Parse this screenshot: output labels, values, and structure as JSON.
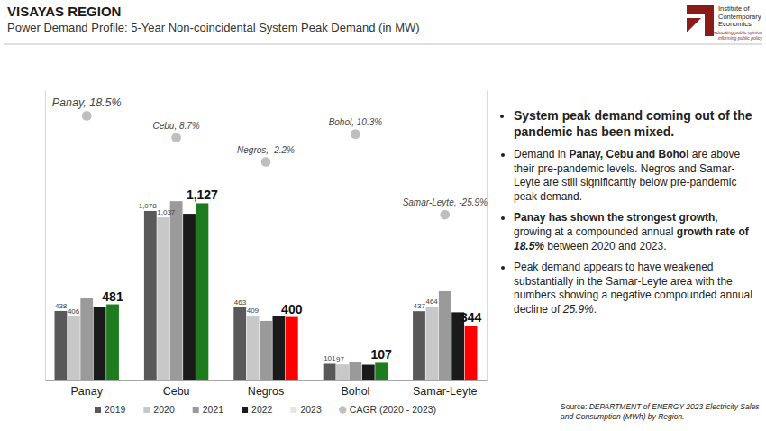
{
  "chart_data": {
    "type": "bar",
    "title": "VISAYAS REGION",
    "subtitle": "Power Demand Profile: 5-Year Non-coincidental System Peak Demand (in MW)",
    "categories": [
      "Panay",
      "Cebu",
      "Negros",
      "Bohol",
      "Samar-Leyte"
    ],
    "ylim": [
      0,
      1850
    ],
    "y2lim": [
      -100,
      30
    ],
    "tick_labels": "x",
    "data_labels": true,
    "legend": "bottom",
    "series": [
      {
        "name": "2019",
        "color": "#595959",
        "values": [
          438,
          1078,
          463,
          101,
          437
        ],
        "value_labels": [
          "438",
          "1,078",
          "463",
          "101",
          "437"
        ]
      },
      {
        "name": "2020",
        "color": "#c8c8c8",
        "values": [
          406,
          1037,
          409,
          97,
          464
        ],
        "value_labels": [
          "406",
          "1,037",
          "409",
          "97",
          "464"
        ]
      },
      {
        "name": "2021",
        "color": "#9a9a9a",
        "values": [
          520,
          1140,
          375,
          112,
          565
        ],
        "value_labels": [
          null,
          null,
          null,
          null,
          null
        ]
      },
      {
        "name": "2022",
        "color": "#1a1a1a",
        "values": [
          465,
          1060,
          405,
          95,
          430
        ],
        "value_labels": [
          null,
          null,
          null,
          null,
          null
        ]
      },
      {
        "name": "2023",
        "color": "#e6e6e6",
        "colors": [
          "#1e7b1e",
          "#1e7b1e",
          "#ff0000",
          "#1e7b1e",
          "#ff0000"
        ],
        "values": [
          481,
          1127,
          400,
          107,
          344
        ],
        "value_labels": [
          "481",
          "1,127",
          "400",
          "107",
          "344"
        ]
      },
      {
        "name": "CAGR (2020 - 2023)",
        "type": "scatter",
        "axis": "y2",
        "marker": "circle",
        "color": "#bfbfbf",
        "values": [
          18.5,
          8.7,
          -2.2,
          10.3,
          -25.9
        ],
        "value_labels": [
          "Panay, 18.5%",
          "Cebu, 8.7%",
          "Negros, -2.2%",
          "Bohol, 10.3%",
          "Samar-Leyte, -25.9%"
        ]
      }
    ]
  },
  "logo": {
    "name_lines": [
      "Institute of",
      "Contemporary",
      "Economics"
    ],
    "tagline_lines": [
      "educating public opinion",
      "informing public policy"
    ]
  },
  "notes": {
    "bullets": [
      {
        "runs": [
          {
            "text": "System peak demand coming out of the pandemic has been mixed.",
            "style": "bold"
          }
        ]
      },
      {
        "runs": [
          {
            "text": "Demand in ",
            "style": "regular"
          },
          {
            "text": "Panay, Cebu and Bohol",
            "style": "bold"
          },
          {
            "text": " are above their pre-pandemic levels. Negros and Samar-Leyte are still significantly below pre-pandemic peak demand.",
            "style": "regular"
          }
        ]
      },
      {
        "runs": [
          {
            "text": "Panay has shown the strongest growth",
            "style": "bold"
          },
          {
            "text": ", growing at a compounded annual ",
            "style": "regular"
          },
          {
            "text": "growth rate of ",
            "style": "bold"
          },
          {
            "text": "18.5%",
            "style": "bold-italic"
          },
          {
            "text": " between 2020 and 2023.",
            "style": "regular"
          }
        ]
      },
      {
        "runs": [
          {
            "text": "Peak demand appears to have weakened substantially in the Samar-Leyte area with the numbers showing a negative compounded annual decline of ",
            "style": "regular"
          },
          {
            "text": "25.9%",
            "style": "italic"
          },
          {
            "text": ".",
            "style": "regular"
          }
        ]
      }
    ]
  },
  "source": {
    "runs": [
      {
        "text": "Source: ",
        "style": "regular"
      },
      {
        "text": "DEPARTMENT of ENERGY 2023 Electricity Sales and Consumption (MWh) by Region.",
        "style": "italic"
      }
    ]
  }
}
